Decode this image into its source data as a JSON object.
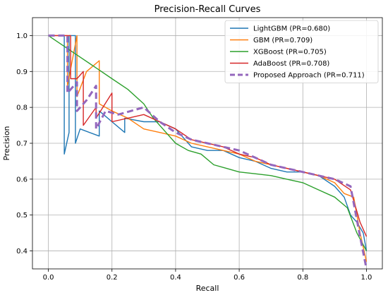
{
  "chart_data": {
    "type": "line",
    "title": "Precision-Recall Curves",
    "xlabel": "Recall",
    "ylabel": "Precision",
    "xlim": [
      -0.05,
      1.05
    ],
    "ylim": [
      0.35,
      1.05
    ],
    "xticks": [
      "0.0",
      "0.2",
      "0.4",
      "0.6",
      "0.8",
      "1.0"
    ],
    "xtick_values": [
      0.0,
      0.2,
      0.4,
      0.6,
      0.8,
      1.0
    ],
    "yticks": [
      "0.4",
      "0.5",
      "0.6",
      "0.7",
      "0.8",
      "0.9",
      "1.0"
    ],
    "ytick_values": [
      0.4,
      0.5,
      0.6,
      0.7,
      0.8,
      0.9,
      1.0
    ],
    "grid": true,
    "legend_position": "top-right",
    "series": [
      {
        "name": "LightGBM (PR=0.680)",
        "color": "#1f77b4",
        "dash": false,
        "x": [
          0.05,
          0.05,
          0.065,
          0.065,
          0.085,
          0.085,
          0.1,
          0.16,
          0.16,
          0.2,
          0.24,
          0.24,
          0.3,
          0.35,
          0.4,
          0.45,
          0.5,
          0.55,
          0.6,
          0.65,
          0.7,
          0.75,
          0.8,
          0.85,
          0.9,
          0.93,
          0.95,
          0.97,
          0.99,
          1.0
        ],
        "y": [
          1.0,
          0.67,
          0.73,
          1.0,
          1.0,
          0.7,
          0.74,
          0.72,
          0.79,
          0.76,
          0.73,
          0.77,
          0.76,
          0.76,
          0.74,
          0.69,
          0.68,
          0.68,
          0.66,
          0.65,
          0.63,
          0.62,
          0.62,
          0.61,
          0.58,
          0.55,
          0.5,
          0.48,
          0.45,
          0.4
        ]
      },
      {
        "name": "GBM (PR=0.709)",
        "color": "#ff7f0e",
        "dash": false,
        "x": [
          0.0,
          0.06,
          0.06,
          0.09,
          0.09,
          0.12,
          0.16,
          0.16,
          0.2,
          0.25,
          0.3,
          0.35,
          0.4,
          0.45,
          0.5,
          0.55,
          0.6,
          0.65,
          0.7,
          0.75,
          0.8,
          0.85,
          0.9,
          0.93,
          0.96,
          0.98,
          1.0
        ],
        "y": [
          1.0,
          1.0,
          0.86,
          1.0,
          0.83,
          0.9,
          0.93,
          0.81,
          0.79,
          0.77,
          0.74,
          0.73,
          0.72,
          0.7,
          0.69,
          0.68,
          0.67,
          0.65,
          0.64,
          0.63,
          0.62,
          0.61,
          0.59,
          0.56,
          0.55,
          0.45,
          0.37
        ]
      },
      {
        "name": "XGBoost (PR=0.705)",
        "color": "#2ca02c",
        "dash": false,
        "x": [
          0.0,
          0.05,
          0.1,
          0.15,
          0.2,
          0.25,
          0.3,
          0.33,
          0.36,
          0.4,
          0.44,
          0.48,
          0.52,
          0.56,
          0.6,
          0.65,
          0.7,
          0.75,
          0.8,
          0.85,
          0.9,
          0.94,
          0.97,
          1.0
        ],
        "y": [
          1.0,
          0.97,
          0.94,
          0.91,
          0.88,
          0.85,
          0.81,
          0.77,
          0.74,
          0.7,
          0.68,
          0.67,
          0.64,
          0.63,
          0.62,
          0.615,
          0.61,
          0.6,
          0.59,
          0.57,
          0.55,
          0.52,
          0.45,
          0.4
        ]
      },
      {
        "name": "AdaBoost (PR=0.708)",
        "color": "#d62728",
        "dash": false,
        "x": [
          0.0,
          0.07,
          0.07,
          0.09,
          0.11,
          0.11,
          0.15,
          0.15,
          0.2,
          0.2,
          0.25,
          0.3,
          0.35,
          0.4,
          0.45,
          0.5,
          0.55,
          0.6,
          0.65,
          0.7,
          0.75,
          0.8,
          0.85,
          0.9,
          0.95,
          0.98,
          1.0
        ],
        "y": [
          1.0,
          1.0,
          0.88,
          0.88,
          0.9,
          0.75,
          0.8,
          0.77,
          0.84,
          0.76,
          0.77,
          0.78,
          0.76,
          0.74,
          0.71,
          0.7,
          0.69,
          0.67,
          0.66,
          0.64,
          0.63,
          0.62,
          0.61,
          0.6,
          0.57,
          0.48,
          0.44
        ]
      },
      {
        "name": "Proposed Approach (PR=0.711)",
        "color": "#9467bd",
        "dash": true,
        "x": [
          0.0,
          0.06,
          0.06,
          0.09,
          0.09,
          0.12,
          0.15,
          0.15,
          0.18,
          0.22,
          0.26,
          0.3,
          0.35,
          0.4,
          0.45,
          0.5,
          0.55,
          0.6,
          0.65,
          0.7,
          0.75,
          0.8,
          0.85,
          0.9,
          0.95,
          0.98,
          1.0
        ],
        "y": [
          1.0,
          1.0,
          0.84,
          0.87,
          0.79,
          0.82,
          0.86,
          0.74,
          0.79,
          0.78,
          0.79,
          0.8,
          0.76,
          0.73,
          0.71,
          0.7,
          0.69,
          0.68,
          0.66,
          0.64,
          0.63,
          0.62,
          0.61,
          0.6,
          0.58,
          0.44,
          0.35
        ]
      }
    ]
  }
}
